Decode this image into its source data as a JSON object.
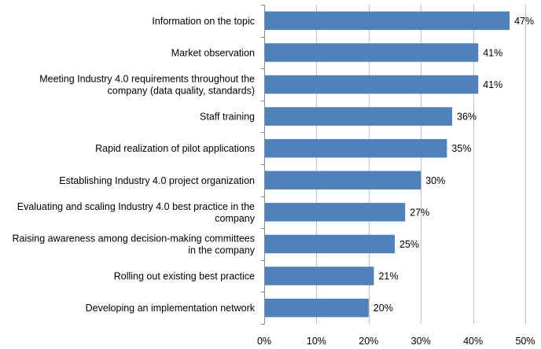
{
  "chart_data": {
    "type": "bar",
    "orientation": "horizontal",
    "title": "",
    "xlabel": "",
    "ylabel": "",
    "categories": [
      [
        "Information on the topic"
      ],
      [
        "Market observation"
      ],
      [
        "Meeting Industry 4.0 requirements throughout the",
        "company (data quality, standards)"
      ],
      [
        "Staff training"
      ],
      [
        "Rapid realization of pilot applications"
      ],
      [
        "Establishing Industry 4.0 project organization"
      ],
      [
        "Evaluating and scaling Industry 4.0 best practice in the",
        "company"
      ],
      [
        "Raising awareness among decision-making committees",
        "in the company"
      ],
      [
        "Rolling out existing best practice"
      ],
      [
        "Developing an implementation network"
      ]
    ],
    "values": [
      47,
      41,
      41,
      36,
      35,
      30,
      27,
      25,
      21,
      20
    ],
    "value_labels": [
      "47%",
      "41%",
      "41%",
      "36%",
      "35%",
      "30%",
      "27%",
      "25%",
      "21%",
      "20%"
    ],
    "xlim": [
      0,
      50
    ],
    "xticks": [
      0,
      10,
      20,
      30,
      40,
      50
    ],
    "xtick_labels": [
      "0%",
      "10%",
      "20%",
      "30%",
      "40%",
      "50%"
    ],
    "grid": true,
    "legend": "none",
    "bar_color": "#4f81bd"
  }
}
